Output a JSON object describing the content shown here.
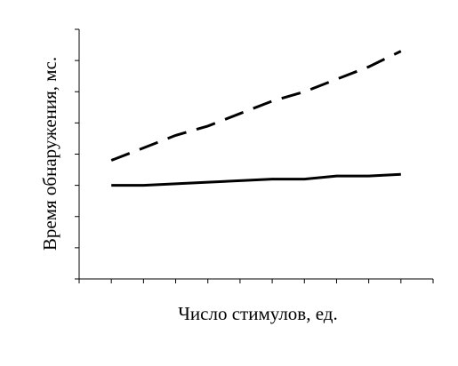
{
  "chart_data": {
    "type": "line",
    "xlabel": "Число стимулов, ед.",
    "ylabel": "Время обнаружения, мс.",
    "x": [
      1,
      2,
      3,
      4,
      5,
      6,
      7,
      8,
      9,
      10
    ],
    "xlim": [
      0,
      11
    ],
    "ylim": [
      0,
      8
    ],
    "xticks": [
      0,
      1,
      2,
      3,
      4,
      5,
      6,
      7,
      8,
      9,
      10,
      11
    ],
    "yticks": [
      0,
      1,
      2,
      3,
      4,
      5,
      6,
      7,
      8
    ],
    "tick_labels_shown": false,
    "grid": false,
    "legend": "none",
    "series": [
      {
        "style": "dashed",
        "color": "#000000",
        "values": [
          3.8,
          4.2,
          4.6,
          4.9,
          5.3,
          5.7,
          6.0,
          6.4,
          6.8,
          7.3
        ]
      },
      {
        "style": "solid",
        "color": "#000000",
        "values": [
          3.0,
          3.0,
          3.05,
          3.1,
          3.15,
          3.2,
          3.2,
          3.3,
          3.3,
          3.35
        ]
      }
    ]
  }
}
